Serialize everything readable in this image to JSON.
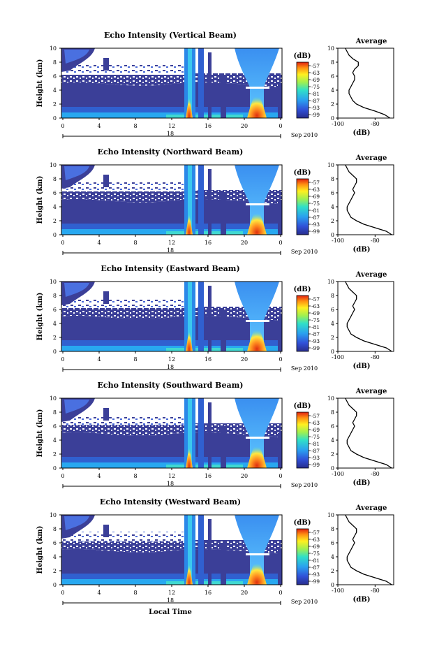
{
  "figure": {
    "footer_label": "Local Time"
  },
  "chart_data": [
    {
      "type": "heatmap",
      "title": "Echo Intensity (Vertical Beam)",
      "ylabel": "Height (km)",
      "ylim": [
        0,
        10
      ],
      "yticks": [
        "0",
        "2",
        "4",
        "6",
        "8",
        "10"
      ],
      "xticks": [
        "0",
        "4",
        "8",
        "12",
        "16",
        "20",
        "0"
      ],
      "date_day": "18",
      "date_month_year": "Sep 2010",
      "colorbar": {
        "unit": "(dB)",
        "ticks": [
          "-57",
          "-63",
          "-69",
          "-75",
          "-81",
          "-87",
          "-93",
          "-99"
        ]
      },
      "average_profile": {
        "title": "Average",
        "xlabel": "(dB)",
        "xticks": [
          "-100",
          "-80"
        ],
        "xlim": [
          -100,
          -70
        ],
        "yticks": [
          "0",
          "2",
          "4",
          "6",
          "8",
          "10"
        ],
        "x": [
          -72,
          -75,
          -80,
          -86,
          -90,
          -92,
          -93,
          -94,
          -94,
          -93,
          -92,
          -91,
          -91,
          -92,
          -91,
          -89,
          -89,
          -92,
          -94,
          -95,
          -96
        ],
        "y": [
          0,
          0.5,
          1,
          1.5,
          2,
          2.5,
          3,
          3.5,
          4,
          4.5,
          5,
          5.5,
          6,
          6.5,
          7,
          7.5,
          8,
          8.5,
          9,
          9.5,
          10
        ]
      }
    },
    {
      "type": "heatmap",
      "title": "Echo Intensity (Northward Beam)",
      "ylabel": "Height (km)",
      "ylim": [
        0,
        10
      ],
      "yticks": [
        "0",
        "2",
        "4",
        "6",
        "8",
        "10"
      ],
      "xticks": [
        "0",
        "4",
        "8",
        "12",
        "16",
        "20",
        "0"
      ],
      "date_day": "18",
      "date_month_year": "Sep 2010",
      "colorbar": {
        "unit": "(dB)",
        "ticks": [
          "-57",
          "-63",
          "-69",
          "-75",
          "-81",
          "-87",
          "-93",
          "-99"
        ]
      },
      "average_profile": {
        "title": "Average",
        "xlabel": "(dB)",
        "xticks": [
          "-100",
          "-80"
        ],
        "xlim": [
          -100,
          -70
        ],
        "yticks": [
          "0",
          "2",
          "4",
          "6",
          "8",
          "10"
        ],
        "x": [
          -71,
          -74,
          -80,
          -86,
          -90,
          -93,
          -94,
          -95,
          -95,
          -94,
          -93,
          -92,
          -91,
          -92,
          -91,
          -90,
          -90,
          -92,
          -94,
          -95,
          -96
        ],
        "y": [
          0,
          0.5,
          1,
          1.5,
          2,
          2.5,
          3,
          3.5,
          4,
          4.5,
          5,
          5.5,
          6,
          6.5,
          7,
          7.5,
          8,
          8.5,
          9,
          9.5,
          10
        ]
      }
    },
    {
      "type": "heatmap",
      "title": "Echo Intensity (Eastward Beam)",
      "ylabel": "Height (km)",
      "ylim": [
        0,
        10
      ],
      "yticks": [
        "0",
        "2",
        "4",
        "6",
        "8",
        "10"
      ],
      "xticks": [
        "0",
        "4",
        "8",
        "12",
        "16",
        "20",
        "0"
      ],
      "date_day": "18",
      "date_month_year": "Sep 2010",
      "colorbar": {
        "unit": "(dB)",
        "ticks": [
          "-57",
          "-63",
          "-69",
          "-75",
          "-81",
          "-87",
          "-93",
          "-99"
        ]
      },
      "average_profile": {
        "title": "Average",
        "xlabel": "(dB)",
        "xticks": [
          "-100",
          "-80"
        ],
        "xlim": [
          -100,
          -70
        ],
        "yticks": [
          "0",
          "2",
          "4",
          "6",
          "8",
          "10"
        ],
        "x": [
          -71,
          -74,
          -80,
          -86,
          -90,
          -93,
          -94,
          -95,
          -95,
          -94,
          -93,
          -92,
          -91,
          -92,
          -91,
          -90,
          -90,
          -92,
          -94,
          -95,
          -96
        ],
        "y": [
          0,
          0.5,
          1,
          1.5,
          2,
          2.5,
          3,
          3.5,
          4,
          4.5,
          5,
          5.5,
          6,
          6.5,
          7,
          7.5,
          8,
          8.5,
          9,
          9.5,
          10
        ]
      }
    },
    {
      "type": "heatmap",
      "title": "Echo Intensity (Southward Beam)",
      "ylabel": "Height (km)",
      "ylim": [
        0,
        10
      ],
      "yticks": [
        "0",
        "2",
        "4",
        "6",
        "8",
        "10"
      ],
      "xticks": [
        "0",
        "4",
        "8",
        "12",
        "16",
        "20",
        "0"
      ],
      "date_day": "18",
      "date_month_year": "Sep 2010",
      "colorbar": {
        "unit": "(dB)",
        "ticks": [
          "-57",
          "-63",
          "-69",
          "-75",
          "-81",
          "-87",
          "-93",
          "-99"
        ]
      },
      "average_profile": {
        "title": "Average",
        "xlabel": "(dB)",
        "xticks": [
          "-100",
          "-80"
        ],
        "xlim": [
          -100,
          -70
        ],
        "yticks": [
          "0",
          "2",
          "4",
          "6",
          "8",
          "10"
        ],
        "x": [
          -71,
          -74,
          -80,
          -86,
          -90,
          -93,
          -94,
          -95,
          -95,
          -94,
          -93,
          -92,
          -91,
          -92,
          -91,
          -90,
          -90,
          -92,
          -94,
          -95,
          -96
        ],
        "y": [
          0,
          0.5,
          1,
          1.5,
          2,
          2.5,
          3,
          3.5,
          4,
          4.5,
          5,
          5.5,
          6,
          6.5,
          7,
          7.5,
          8,
          8.5,
          9,
          9.5,
          10
        ]
      }
    },
    {
      "type": "heatmap",
      "title": "Echo Intensity (Westward Beam)",
      "ylabel": "Height (km)",
      "ylim": [
        0,
        10
      ],
      "yticks": [
        "0",
        "2",
        "4",
        "6",
        "8",
        "10"
      ],
      "xticks": [
        "0",
        "4",
        "8",
        "12",
        "16",
        "20",
        "0"
      ],
      "date_day": "18",
      "date_month_year": "Sep 2010",
      "colorbar": {
        "unit": "(dB)",
        "ticks": [
          "-57",
          "-63",
          "-69",
          "-75",
          "-81",
          "-87",
          "-93",
          "-99"
        ]
      },
      "average_profile": {
        "title": "Average",
        "xlabel": "(dB)",
        "xticks": [
          "-100",
          "-80"
        ],
        "xlim": [
          -100,
          -70
        ],
        "yticks": [
          "0",
          "2",
          "4",
          "6",
          "8",
          "10"
        ],
        "x": [
          -71,
          -74,
          -80,
          -86,
          -90,
          -93,
          -94,
          -95,
          -95,
          -94,
          -93,
          -92,
          -91,
          -92,
          -91,
          -90,
          -90,
          -92,
          -94,
          -95,
          -96
        ],
        "y": [
          0,
          0.5,
          1,
          1.5,
          2,
          2.5,
          3,
          3.5,
          4,
          4.5,
          5,
          5.5,
          6,
          6.5,
          7,
          7.5,
          8,
          8.5,
          9,
          9.5,
          10
        ]
      }
    }
  ]
}
